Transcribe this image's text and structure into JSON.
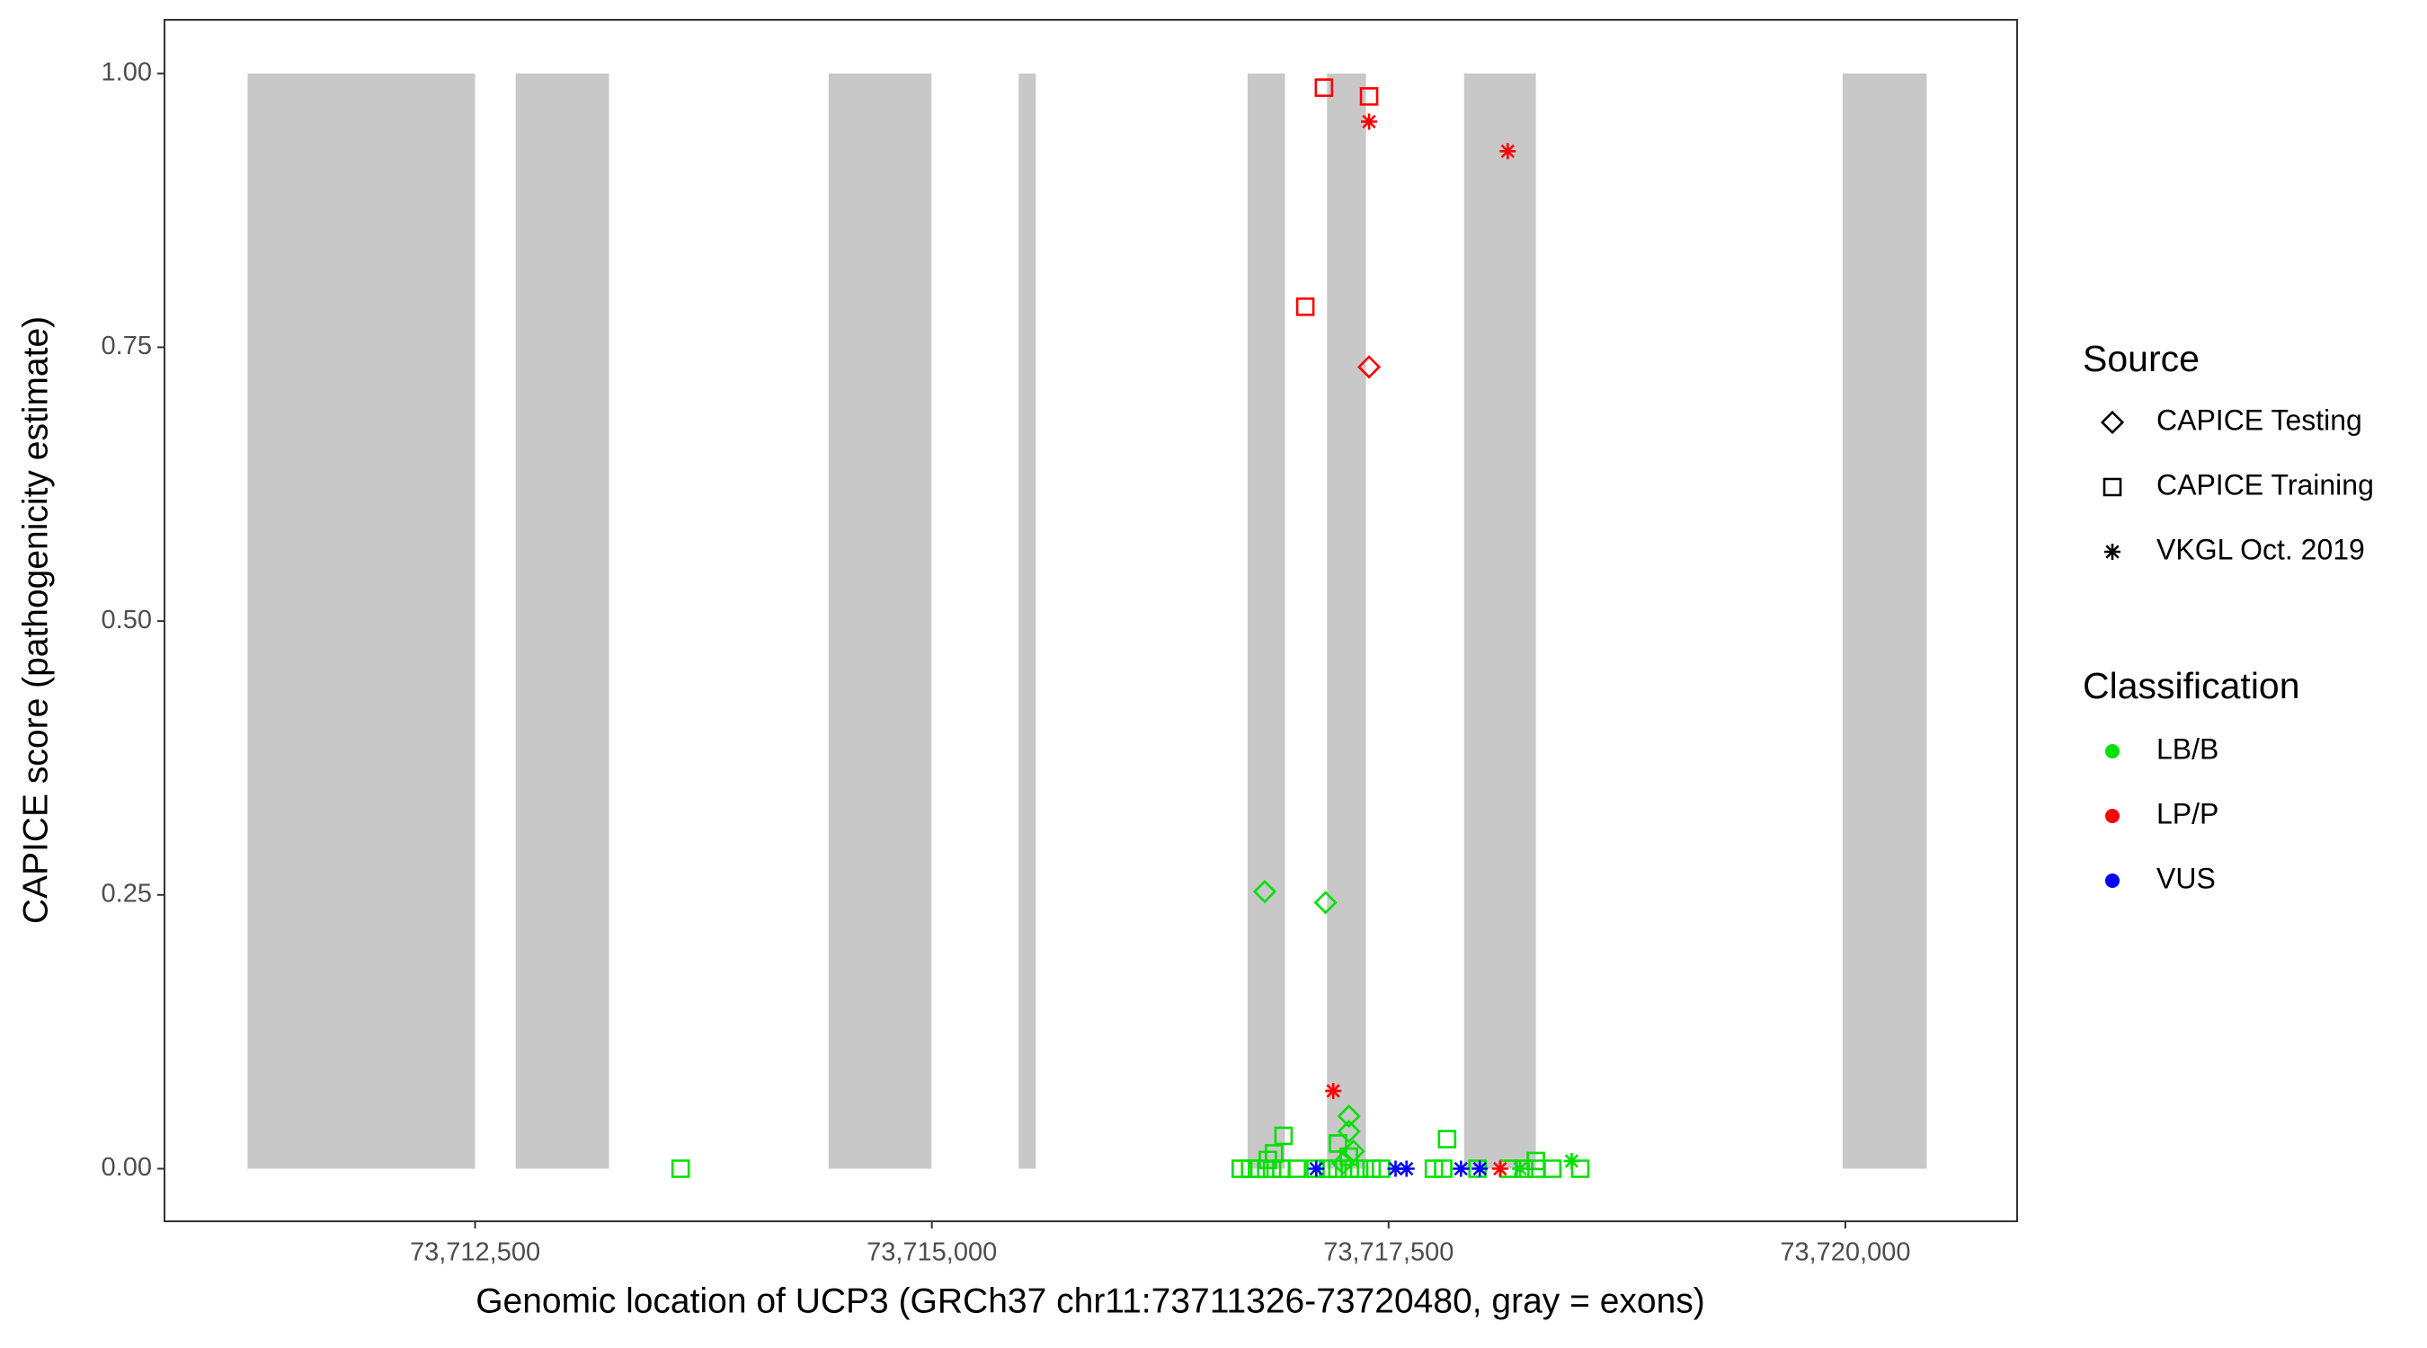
{
  "chart_data": {
    "type": "scatter",
    "x_label": "Genomic location of UCP3 (GRCh37 chr11:73711326-73720480, gray = exons)",
    "y_label": "CAPICE score (pathogenicity estimate)",
    "xlim": [
      73710800,
      73720940
    ],
    "ylim": [
      -0.048,
      1.049
    ],
    "xticks": [
      {
        "value": 73712500,
        "label": "73,712,500"
      },
      {
        "value": 73715000,
        "label": "73,715,000"
      },
      {
        "value": 73717500,
        "label": "73,717,500"
      },
      {
        "value": 73720000,
        "label": "73,720,000"
      }
    ],
    "yticks": [
      {
        "value": 0,
        "label": "0.00"
      },
      {
        "value": 0.25,
        "label": "0.25"
      },
      {
        "value": 0.5,
        "label": "0.50"
      },
      {
        "value": 0.75,
        "label": "0.75"
      },
      {
        "value": 1,
        "label": "1.00"
      }
    ],
    "exon_color": "#c8c8c8",
    "exon_y": [
      0,
      1
    ],
    "exons": [
      {
        "start": 73711255,
        "end": 73712500
      },
      {
        "start": 73712722,
        "end": 73713233
      },
      {
        "start": 73714435,
        "end": 73714998
      },
      {
        "start": 73715475,
        "end": 73715569
      },
      {
        "start": 73716728,
        "end": 73716933
      },
      {
        "start": 73717163,
        "end": 73717376
      },
      {
        "start": 73717913,
        "end": 73718306
      },
      {
        "start": 73719985,
        "end": 73720445
      }
    ],
    "legend_source": {
      "title": "Source",
      "items": [
        {
          "name": "CAPICE Testing",
          "shape": "diamond"
        },
        {
          "name": "CAPICE Training",
          "shape": "square"
        },
        {
          "name": "VKGL Oct. 2019",
          "shape": "asterisk"
        }
      ]
    },
    "legend_classification": {
      "title": "Classification",
      "items": [
        {
          "name": "LB/B",
          "color": "#00e000"
        },
        {
          "name": "LP/P",
          "color": "#ff0000"
        },
        {
          "name": "VUS",
          "color": "#0000ff"
        }
      ]
    },
    "series": [
      {
        "classification": "LB/B",
        "source": "CAPICE Training",
        "x": [
          73713625,
          73716925,
          73717820,
          73717223,
          73716873,
          73716839,
          73717283,
          73718306,
          73716691,
          73716742,
          73716793,
          73716862,
          73716913,
          73716998,
          73717100,
          73717168,
          73717220,
          73717288,
          73717339,
          73717407,
          73717458,
          73717748,
          73717799,
          73717987,
          73718157,
          73718242,
          73718310,
          73718396,
          73718549
        ],
        "values": [
          0,
          0.03,
          0.027,
          0.023,
          0.014,
          0.008,
          0.011,
          0.007,
          0,
          0,
          0,
          0,
          0,
          0,
          0,
          0,
          0,
          0,
          0,
          0,
          0,
          0,
          0,
          0,
          0,
          0,
          0,
          0,
          0
        ]
      },
      {
        "classification": "LB/B",
        "source": "CAPICE Testing",
        "x": [
          73716822,
          73717155,
          73717283,
          73717283,
          73717308,
          73717250
        ],
        "values": [
          0.253,
          0.243,
          0.048,
          0.034,
          0.016,
          0.005
        ]
      },
      {
        "classification": "LB/B",
        "source": "VKGL Oct. 2019",
        "x": [
          73718502,
          73718220
        ],
        "values": [
          0.007,
          0
        ]
      },
      {
        "classification": "LP/P",
        "source": "CAPICE Training",
        "x": [
          73717146,
          73717393,
          73717044
        ],
        "values": [
          0.987,
          0.979,
          0.787
        ]
      },
      {
        "classification": "LP/P",
        "source": "CAPICE Testing",
        "x": [
          73717393
        ],
        "values": [
          0.732
        ]
      },
      {
        "classification": "LP/P",
        "source": "VKGL Oct. 2019",
        "x": [
          73717393,
          73718152,
          73717197,
          73718110
        ],
        "values": [
          0.956,
          0.929,
          0.071,
          0
        ]
      },
      {
        "classification": "VUS",
        "source": "VKGL Oct. 2019",
        "x": [
          73717104,
          73717538,
          73717598,
          73717896,
          73717999
        ],
        "values": [
          0,
          0,
          0,
          0,
          0
        ]
      }
    ]
  }
}
